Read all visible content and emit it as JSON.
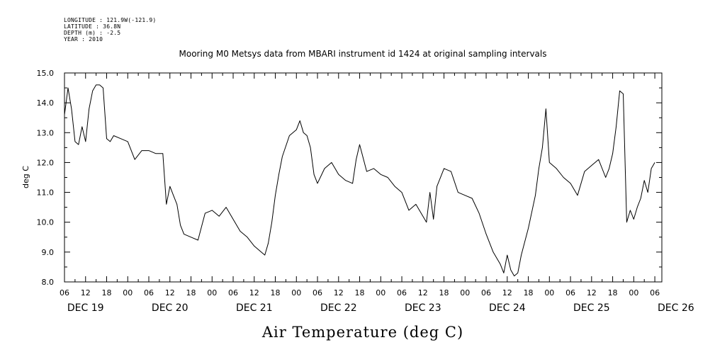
{
  "header": {
    "longitude": "LONGITUDE : 121.9W(-121.9)",
    "latitude": "LATITUDE : 36.8N",
    "depth": "DEPTH (m) : -2.5",
    "year": "YEAR : 2010"
  },
  "chart_data": {
    "type": "line",
    "title": "Mooring M0 Metsys data from MBARI instrument id 1424 at original sampling intervals",
    "xlabel": "Air Temperature (deg C)",
    "ylabel": "deg C",
    "ylim": [
      8.0,
      15.0
    ],
    "xlim_hours": [
      0,
      170
    ],
    "y_ticks": [
      "8.0",
      "9.0",
      "10.0",
      "11.0",
      "12.0",
      "13.0",
      "14.0",
      "15.0"
    ],
    "x_hour_ticks": [
      "06",
      "12",
      "18",
      "00",
      "06",
      "12",
      "18",
      "00",
      "06",
      "12",
      "18",
      "00",
      "06",
      "12",
      "18",
      "00",
      "06",
      "12",
      "18",
      "00",
      "06",
      "12",
      "18",
      "00",
      "06",
      "12",
      "18",
      "00",
      "06"
    ],
    "x_day_labels": [
      "DEC 19",
      "DEC 20",
      "DEC 21",
      "DEC 22",
      "DEC 23",
      "DEC 24",
      "DEC 25",
      "DEC 26"
    ],
    "grid": false,
    "series": [
      {
        "x": [
          "2010-12-19 06:00",
          "2010-12-19 07:00",
          "2010-12-19 08:00",
          "2010-12-19 09:00",
          "2010-12-19 10:00",
          "2010-12-19 11:00",
          "2010-12-19 12:00",
          "2010-12-19 13:00",
          "2010-12-19 14:00",
          "2010-12-19 15:00",
          "2010-12-19 16:00",
          "2010-12-19 17:00",
          "2010-12-19 18:00",
          "2010-12-19 19:00",
          "2010-12-19 20:00",
          "2010-12-19 22:00",
          "2010-12-20 00:00",
          "2010-12-20 02:00",
          "2010-12-20 04:00",
          "2010-12-20 06:00",
          "2010-12-20 08:00",
          "2010-12-20 10:00",
          "2010-12-20 11:00",
          "2010-12-20 12:00",
          "2010-12-20 13:00",
          "2010-12-20 14:00",
          "2010-12-20 15:00",
          "2010-12-20 16:00",
          "2010-12-20 18:00",
          "2010-12-20 20:00",
          "2010-12-20 22:00",
          "2010-12-21 00:00",
          "2010-12-21 02:00",
          "2010-12-21 04:00",
          "2010-12-21 06:00",
          "2010-12-21 08:00",
          "2010-12-21 10:00",
          "2010-12-21 12:00",
          "2010-12-21 14:00",
          "2010-12-21 15:00",
          "2010-12-21 16:00",
          "2010-12-21 17:00",
          "2010-12-21 18:00",
          "2010-12-21 19:00",
          "2010-12-21 20:00",
          "2010-12-21 22:00",
          "2010-12-22 00:00",
          "2010-12-22 01:00",
          "2010-12-22 02:00",
          "2010-12-22 03:00",
          "2010-12-22 04:00",
          "2010-12-22 05:00",
          "2010-12-22 06:00",
          "2010-12-22 08:00",
          "2010-12-22 10:00",
          "2010-12-22 12:00",
          "2010-12-22 14:00",
          "2010-12-22 16:00",
          "2010-12-22 17:00",
          "2010-12-22 18:00",
          "2010-12-22 20:00",
          "2010-12-22 22:00",
          "2010-12-23 00:00",
          "2010-12-23 02:00",
          "2010-12-23 04:00",
          "2010-12-23 06:00",
          "2010-12-23 07:00",
          "2010-12-23 08:00",
          "2010-12-23 10:00",
          "2010-12-23 12:00",
          "2010-12-23 13:00",
          "2010-12-23 14:00",
          "2010-12-23 15:00",
          "2010-12-23 16:00",
          "2010-12-23 18:00",
          "2010-12-23 20:00",
          "2010-12-23 22:00",
          "2010-12-24 00:00",
          "2010-12-24 02:00",
          "2010-12-24 04:00",
          "2010-12-24 06:00",
          "2010-12-24 08:00",
          "2010-12-24 10:00",
          "2010-12-24 11:00",
          "2010-12-24 12:00",
          "2010-12-24 13:00",
          "2010-12-24 14:00",
          "2010-12-24 15:00",
          "2010-12-24 16:00",
          "2010-12-24 18:00",
          "2010-12-24 20:00",
          "2010-12-24 21:00",
          "2010-12-24 22:00",
          "2010-12-24 23:00",
          "2010-12-25 00:00",
          "2010-12-25 02:00",
          "2010-12-25 04:00",
          "2010-12-25 06:00",
          "2010-12-25 08:00",
          "2010-12-25 10:00",
          "2010-12-25 12:00",
          "2010-12-25 14:00",
          "2010-12-25 16:00",
          "2010-12-25 17:00",
          "2010-12-25 18:00",
          "2010-12-25 19:00",
          "2010-12-25 20:00",
          "2010-12-25 21:00",
          "2010-12-25 22:00",
          "2010-12-25 23:00",
          "2010-12-26 00:00",
          "2010-12-26 01:00",
          "2010-12-26 02:00",
          "2010-12-26 03:00",
          "2010-12-26 04:00",
          "2010-12-26 05:00",
          "2010-12-26 06:00"
        ],
        "values": [
          13.6,
          14.5,
          13.8,
          12.7,
          12.6,
          13.2,
          12.7,
          13.8,
          14.4,
          14.6,
          14.6,
          14.5,
          12.8,
          12.7,
          12.9,
          12.8,
          12.7,
          12.1,
          12.4,
          12.4,
          12.3,
          12.3,
          10.6,
          11.2,
          10.9,
          10.6,
          9.9,
          9.6,
          9.5,
          9.4,
          10.3,
          10.4,
          10.2,
          10.5,
          10.1,
          9.7,
          9.5,
          9.2,
          9.0,
          8.9,
          9.3,
          10.0,
          10.9,
          11.6,
          12.2,
          12.9,
          13.1,
          13.4,
          13.0,
          12.9,
          12.5,
          11.6,
          11.3,
          11.8,
          12.0,
          11.6,
          11.4,
          11.3,
          12.1,
          12.6,
          11.7,
          11.8,
          11.6,
          11.5,
          11.2,
          11.0,
          10.7,
          10.4,
          10.6,
          10.2,
          10.0,
          11.0,
          10.1,
          11.2,
          11.8,
          11.7,
          11.0,
          10.9,
          10.8,
          10.3,
          9.6,
          9.0,
          8.6,
          8.3,
          8.9,
          8.4,
          8.2,
          8.3,
          8.9,
          9.8,
          10.9,
          11.8,
          12.5,
          13.8,
          12.0,
          11.8,
          11.5,
          11.3,
          10.9,
          11.7,
          11.9,
          12.1,
          11.5,
          11.8,
          12.3,
          13.2,
          14.4,
          14.3,
          10.0,
          10.4,
          10.1,
          10.5,
          10.8,
          11.4,
          11.0,
          11.8,
          12.0
        ]
      }
    ]
  }
}
